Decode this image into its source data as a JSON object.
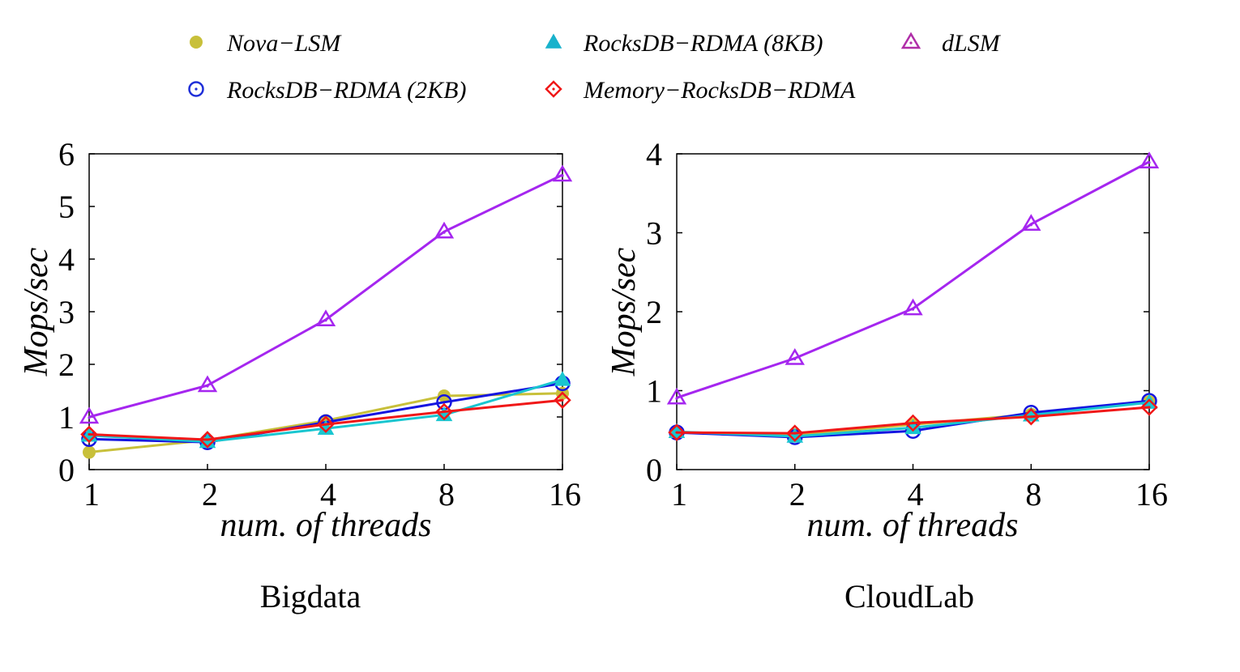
{
  "legend": {
    "entries": [
      {
        "key": "nova",
        "label": "Nova−LSM",
        "color": "#c8c03a",
        "marker": "filled-circle"
      },
      {
        "key": "r8",
        "label": "RocksDB−RDMA (8KB)",
        "color": "#19b2cc",
        "marker": "filled-triangle"
      },
      {
        "key": "dlsm",
        "label": "dLSM",
        "color": "#b02ea8",
        "marker": "open-triangle-dot"
      },
      {
        "key": "r2",
        "label": "RocksDB−RDMA (2KB)",
        "color": "#1f2fd8",
        "marker": "open-circle-dot"
      },
      {
        "key": "mem",
        "label": "Memory−RocksDB−RDMA",
        "color": "#f01818",
        "marker": "open-diamond-dot"
      }
    ]
  },
  "chart_data": [
    {
      "type": "line",
      "title": "Bigdata",
      "xlabel": "num. of threads",
      "ylabel": "Mops/sec",
      "categories": [
        "1",
        "2",
        "4",
        "8",
        "16"
      ],
      "ylim": [
        0,
        6
      ],
      "yticks": [
        "0",
        "1",
        "2",
        "3",
        "4",
        "5",
        "6"
      ],
      "series": [
        {
          "key": "nova",
          "name": "Nova−LSM",
          "color": "#c8c03a",
          "values": [
            0.33,
            0.56,
            0.93,
            1.4,
            1.45
          ]
        },
        {
          "key": "r2",
          "name": "RocksDB−RDMA (2KB)",
          "color": "#1515e0",
          "values": [
            0.58,
            0.52,
            0.9,
            1.28,
            1.64
          ]
        },
        {
          "key": "r8",
          "name": "RocksDB−RDMA (8KB)",
          "color": "#19c6d0",
          "values": [
            0.65,
            0.53,
            0.78,
            1.04,
            1.71
          ]
        },
        {
          "key": "mem",
          "name": "Memory−RocksDB−RDMA",
          "color": "#f01818",
          "values": [
            0.67,
            0.57,
            0.86,
            1.1,
            1.32
          ]
        },
        {
          "key": "dlsm",
          "name": "dLSM",
          "color": "#a526ef",
          "values": [
            1.0,
            1.6,
            2.85,
            4.52,
            5.6
          ]
        }
      ]
    },
    {
      "type": "line",
      "title": "CloudLab",
      "xlabel": "num. of threads",
      "ylabel": "Mops/sec",
      "categories": [
        "1",
        "2",
        "4",
        "8",
        "16"
      ],
      "ylim": [
        0,
        4
      ],
      "yticks": [
        "0",
        "1",
        "2",
        "3",
        "4"
      ],
      "series": [
        {
          "key": "nova",
          "name": "Nova−LSM",
          "color": "#c8c03a",
          "values": [
            0.47,
            0.44,
            0.57,
            0.7,
            0.86
          ]
        },
        {
          "key": "r2",
          "name": "RocksDB−RDMA (2KB)",
          "color": "#1515e0",
          "values": [
            0.47,
            0.41,
            0.49,
            0.72,
            0.87
          ]
        },
        {
          "key": "r8",
          "name": "RocksDB−RDMA (8KB)",
          "color": "#19c6d0",
          "values": [
            0.48,
            0.42,
            0.53,
            0.69,
            0.85
          ]
        },
        {
          "key": "mem",
          "name": "Memory−RocksDB−RDMA",
          "color": "#f01818",
          "values": [
            0.47,
            0.46,
            0.59,
            0.67,
            0.79
          ]
        },
        {
          "key": "dlsm",
          "name": "dLSM",
          "color": "#a526ef",
          "values": [
            0.91,
            1.41,
            2.04,
            3.11,
            3.9
          ]
        }
      ]
    }
  ]
}
